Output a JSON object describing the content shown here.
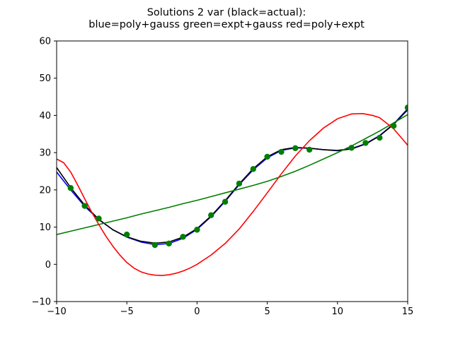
{
  "chart_data": {
    "type": "line",
    "title_lines": [
      "Solutions 2 var (black=actual):",
      "blue=poly+gauss green=expt+gauss red=poly+expt"
    ],
    "xlabel": "",
    "ylabel": "",
    "xlim": [
      -10,
      15
    ],
    "ylim": [
      -10,
      60
    ],
    "xticks": [
      -10,
      -5,
      0,
      5,
      10,
      15
    ],
    "yticks": [
      -10,
      0,
      10,
      20,
      30,
      40,
      50,
      60
    ],
    "grid": false,
    "points": {
      "color": "#007f00",
      "x": [
        -9,
        -8,
        -7,
        -5,
        -3,
        -2,
        -1,
        0,
        1,
        2,
        3,
        4,
        5,
        6,
        7,
        8,
        11,
        12,
        13,
        14,
        15
      ],
      "y": [
        20.5,
        15.7,
        12.3,
        8.0,
        5.2,
        5.6,
        7.4,
        9.3,
        13.2,
        16.8,
        21.7,
        25.6,
        28.9,
        30.2,
        31.2,
        30.8,
        31.3,
        32.6,
        34.0,
        37.2,
        42.1
      ]
    },
    "series": [
      {
        "color": "#0000ff",
        "x": [
          -10,
          -9,
          -8,
          -7,
          -6,
          -5,
          -4,
          -3,
          -2,
          -1,
          0,
          1,
          2,
          3,
          4,
          5,
          6,
          7,
          8,
          9,
          10,
          11,
          12,
          13,
          14,
          15
        ],
        "y": [
          24.8,
          20.0,
          15.6,
          12.0,
          9.3,
          7.3,
          6.0,
          5.3,
          5.6,
          7.0,
          9.4,
          12.8,
          16.9,
          21.4,
          25.4,
          28.6,
          30.6,
          31.3,
          31.2,
          30.8,
          30.6,
          31.1,
          32.4,
          34.6,
          37.7,
          41.8
        ]
      },
      {
        "color": "#000000",
        "x": [
          -10,
          -9,
          -8,
          -7,
          -6,
          -5,
          -4,
          -3,
          -2,
          -1,
          0,
          1,
          2,
          3,
          4,
          5,
          6,
          7,
          8,
          9,
          10,
          11,
          12,
          13,
          14,
          15
        ],
        "y": [
          26.0,
          20.6,
          15.9,
          12.1,
          9.3,
          7.4,
          6.2,
          5.7,
          6.0,
          7.3,
          9.6,
          13.0,
          17.1,
          21.6,
          25.7,
          28.9,
          30.8,
          31.4,
          31.2,
          30.8,
          30.5,
          31.0,
          32.3,
          34.5,
          37.6,
          41.5
        ]
      },
      {
        "color": "#007f00",
        "x": [
          -10,
          -9,
          -8,
          -7,
          -6,
          -5,
          -4,
          -3,
          -2,
          -1,
          0,
          1,
          2,
          3,
          4,
          5,
          6,
          7,
          8,
          9,
          10,
          11,
          12,
          13,
          14,
          15
        ],
        "y": [
          8.0,
          8.9,
          9.8,
          10.7,
          11.6,
          12.5,
          13.5,
          14.4,
          15.3,
          16.3,
          17.2,
          18.2,
          19.2,
          20.2,
          21.2,
          22.3,
          23.6,
          25.0,
          26.6,
          28.3,
          30.0,
          31.8,
          33.8,
          35.8,
          38.0,
          40.2
        ]
      },
      {
        "color": "#ff0000",
        "x": [
          -10,
          -9.5,
          -9,
          -8.5,
          -8,
          -7.5,
          -7,
          -6.5,
          -6,
          -5.5,
          -5,
          -4.5,
          -4,
          -3.5,
          -3,
          -2.5,
          -2,
          -1.5,
          -1,
          -0.5,
          0,
          1,
          2,
          3,
          4,
          5,
          6,
          7,
          8,
          9,
          10,
          11,
          11.8,
          12.5,
          13,
          14,
          15
        ],
        "y": [
          28.3,
          27.3,
          24.8,
          21.3,
          17.6,
          14.0,
          10.7,
          7.6,
          4.9,
          2.5,
          0.5,
          -1.0,
          -2.0,
          -2.6,
          -2.9,
          -3.0,
          -2.8,
          -2.4,
          -1.8,
          -1.0,
          0.0,
          2.5,
          5.6,
          9.5,
          14.2,
          19.2,
          24.3,
          29.1,
          33.2,
          36.6,
          39.1,
          40.4,
          40.5,
          40.0,
          39.4,
          36.4,
          32.0
        ]
      }
    ]
  }
}
